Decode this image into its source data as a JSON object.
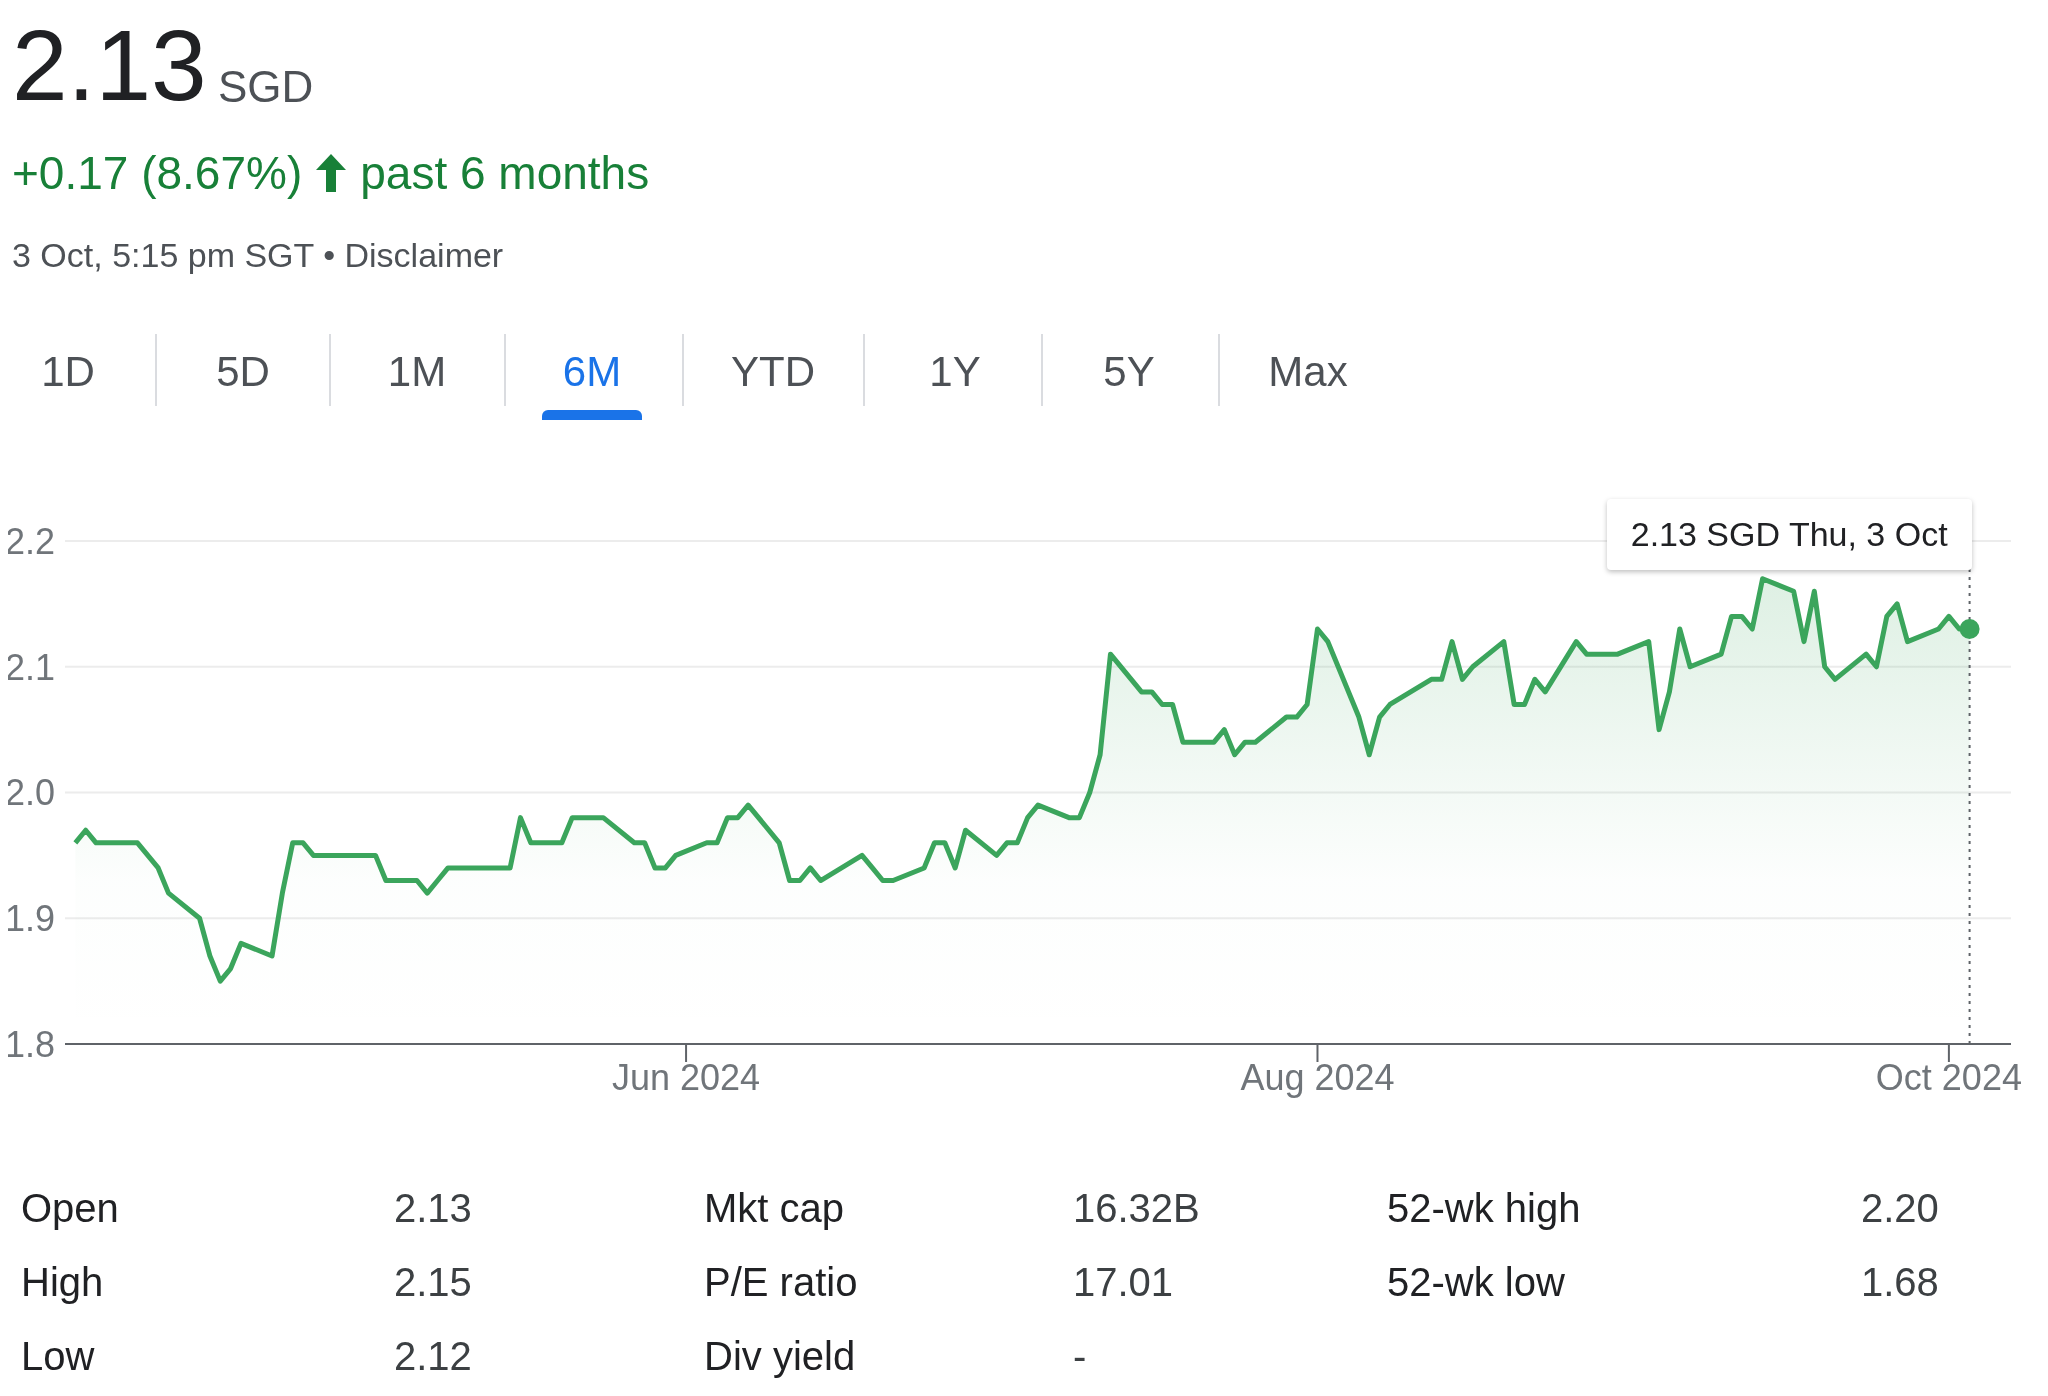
{
  "chart_data": {
    "type": "area",
    "title": "2.13",
    "subtitle": "+0.17 (8.67%)",
    "annotations": [
      "SGD",
      "past 6 months",
      "3 Oct, 5:15 pm SGT • Disclaimer",
      "1D",
      "5D",
      "1M",
      "6M",
      "YTD",
      "1Y",
      "5Y",
      "Max",
      {
        "text": "2.13 SGD  Thu, 3 Oct",
        "x": "2024-10-03",
        "y": 2.13
      },
      "Open",
      "2.13",
      "Mkt cap",
      "16.32B",
      "52-wk high",
      "2.20",
      "High",
      "2.15",
      "P/E ratio",
      "17.01",
      "52-wk low",
      "1.68",
      "Low",
      "2.12",
      "Div yield",
      "-"
    ],
    "x": [
      "2024-04-03",
      "2024-04-04",
      "2024-04-05",
      "2024-04-08",
      "2024-04-09",
      "2024-04-11",
      "2024-04-12",
      "2024-04-15",
      "2024-04-16",
      "2024-04-17",
      "2024-04-18",
      "2024-04-19",
      "2024-04-22",
      "2024-04-23",
      "2024-04-24",
      "2024-04-25",
      "2024-04-26",
      "2024-04-29",
      "2024-04-30",
      "2024-05-02",
      "2024-05-03",
      "2024-05-06",
      "2024-05-07",
      "2024-05-08",
      "2024-05-09",
      "2024-05-10",
      "2024-05-13",
      "2024-05-14",
      "2024-05-15",
      "2024-05-16",
      "2024-05-17",
      "2024-05-20",
      "2024-05-21",
      "2024-05-23",
      "2024-05-24",
      "2024-05-27",
      "2024-05-28",
      "2024-05-29",
      "2024-05-30",
      "2024-05-31",
      "2024-06-03",
      "2024-06-04",
      "2024-06-05",
      "2024-06-06",
      "2024-06-07",
      "2024-06-10",
      "2024-06-11",
      "2024-06-12",
      "2024-06-13",
      "2024-06-14",
      "2024-06-18",
      "2024-06-19",
      "2024-06-20",
      "2024-06-21",
      "2024-06-24",
      "2024-06-25",
      "2024-06-26",
      "2024-06-27",
      "2024-06-28",
      "2024-07-01",
      "2024-07-02",
      "2024-07-03",
      "2024-07-04",
      "2024-07-05",
      "2024-07-08",
      "2024-07-09",
      "2024-07-10",
      "2024-07-11",
      "2024-07-12",
      "2024-07-15",
      "2024-07-16",
      "2024-07-17",
      "2024-07-18",
      "2024-07-19",
      "2024-07-22",
      "2024-07-23",
      "2024-07-24",
      "2024-07-25",
      "2024-07-26",
      "2024-07-29",
      "2024-07-30",
      "2024-07-31",
      "2024-08-01",
      "2024-08-02",
      "2024-08-05",
      "2024-08-06",
      "2024-08-07",
      "2024-08-08",
      "2024-08-12",
      "2024-08-13",
      "2024-08-14",
      "2024-08-15",
      "2024-08-16",
      "2024-08-19",
      "2024-08-20",
      "2024-08-21",
      "2024-08-22",
      "2024-08-23",
      "2024-08-26",
      "2024-08-27",
      "2024-08-28",
      "2024-08-29",
      "2024-08-30",
      "2024-09-02",
      "2024-09-03",
      "2024-09-04",
      "2024-09-05",
      "2024-09-06",
      "2024-09-09",
      "2024-09-10",
      "2024-09-11",
      "2024-09-12",
      "2024-09-13",
      "2024-09-16",
      "2024-09-17",
      "2024-09-18",
      "2024-09-19",
      "2024-09-20",
      "2024-09-23",
      "2024-09-24",
      "2024-09-25",
      "2024-09-26",
      "2024-09-27",
      "2024-09-30",
      "2024-10-01",
      "2024-10-02",
      "2024-10-03"
    ],
    "series": [
      {
        "color": "#3ba55c",
        "values": [
          1.96,
          1.97,
          1.96,
          1.96,
          1.96,
          1.94,
          1.92,
          1.9,
          1.87,
          1.85,
          1.86,
          1.88,
          1.87,
          1.92,
          1.96,
          1.96,
          1.95,
          1.95,
          1.95,
          1.95,
          1.93,
          1.93,
          1.92,
          1.93,
          1.94,
          1.94,
          1.94,
          1.94,
          1.94,
          1.98,
          1.96,
          1.96,
          1.98,
          1.98,
          1.98,
          1.96,
          1.96,
          1.94,
          1.94,
          1.95,
          1.96,
          1.96,
          1.98,
          1.98,
          1.99,
          1.96,
          1.93,
          1.93,
          1.94,
          1.93,
          1.95,
          1.94,
          1.93,
          1.93,
          1.94,
          1.96,
          1.96,
          1.94,
          1.97,
          1.95,
          1.96,
          1.96,
          1.98,
          1.99,
          1.98,
          1.98,
          2.0,
          2.03,
          2.11,
          2.08,
          2.08,
          2.07,
          2.07,
          2.04,
          2.04,
          2.05,
          2.03,
          2.04,
          2.04,
          2.06,
          2.06,
          2.07,
          2.13,
          2.12,
          2.06,
          2.03,
          2.06,
          2.07,
          2.09,
          2.09,
          2.12,
          2.09,
          2.1,
          2.12,
          2.07,
          2.07,
          2.09,
          2.08,
          2.12,
          2.11,
          2.11,
          2.11,
          2.11,
          2.12,
          2.05,
          2.08,
          2.13,
          2.1,
          2.11,
          2.14,
          2.14,
          2.13,
          2.17,
          2.16,
          2.12,
          2.16,
          2.1,
          2.09,
          2.11,
          2.1,
          2.14,
          2.15,
          2.12,
          2.13,
          2.14,
          2.13,
          2.13
        ]
      }
    ],
    "xlim": [
      "2024-04-02",
      "2024-10-07"
    ],
    "xticks": [
      {
        "value": "2024-06-01",
        "label": "Jun 2024"
      },
      {
        "value": "2024-08-01",
        "label": "Aug 2024"
      },
      {
        "value": "2024-10-01",
        "label": "Oct 2024"
      }
    ],
    "ylim": [
      1.8,
      2.2
    ],
    "yticks": [
      1.8,
      1.9,
      {
        "value": 2.0,
        "label": "2.0"
      },
      2.1,
      2.2
    ],
    "grid": "y",
    "ref_lines": [
      {
        "axis": "x",
        "value": "2024-10-03",
        "color": "#5f6368",
        "line_style": "dotted"
      }
    ]
  }
}
